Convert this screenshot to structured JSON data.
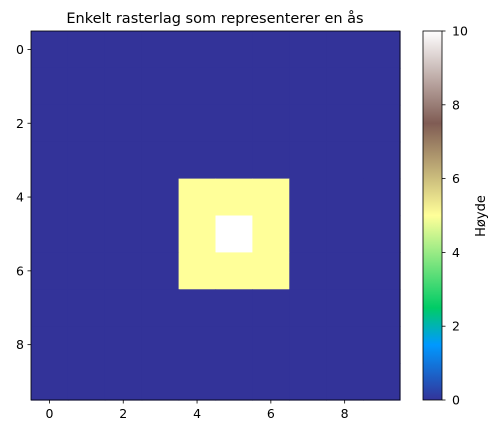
{
  "chart_data": {
    "type": "heatmap",
    "title": "Enkelt rasterlag som representerer en ås",
    "xlabel": "",
    "ylabel": "",
    "colorbar_label": "Høyde",
    "colormap": "terrain",
    "clim": [
      0,
      10
    ],
    "xlim": [
      -0.5,
      9.5
    ],
    "ylim": [
      9.5,
      -0.5
    ],
    "x_ticks": [
      0,
      2,
      4,
      6,
      8
    ],
    "y_ticks": [
      0,
      2,
      4,
      6,
      8
    ],
    "colorbar_ticks": [
      0,
      2,
      4,
      6,
      8,
      10
    ],
    "grid": false,
    "values": [
      [
        0,
        0,
        0,
        0,
        0,
        0,
        0,
        0,
        0,
        0
      ],
      [
        0,
        0,
        0,
        0,
        0,
        0,
        0,
        0,
        0,
        0
      ],
      [
        0,
        0,
        0,
        0,
        0,
        0,
        0,
        0,
        0,
        0
      ],
      [
        0,
        0,
        0,
        0,
        0,
        0,
        0,
        0,
        0,
        0
      ],
      [
        0,
        0,
        0,
        0,
        5,
        5,
        5,
        0,
        0,
        0
      ],
      [
        0,
        0,
        0,
        0,
        5,
        10,
        5,
        0,
        0,
        0
      ],
      [
        0,
        0,
        0,
        0,
        5,
        5,
        5,
        0,
        0,
        0
      ],
      [
        0,
        0,
        0,
        0,
        0,
        0,
        0,
        0,
        0,
        0
      ],
      [
        0,
        0,
        0,
        0,
        0,
        0,
        0,
        0,
        0,
        0
      ],
      [
        0,
        0,
        0,
        0,
        0,
        0,
        0,
        0,
        0,
        0
      ]
    ]
  }
}
